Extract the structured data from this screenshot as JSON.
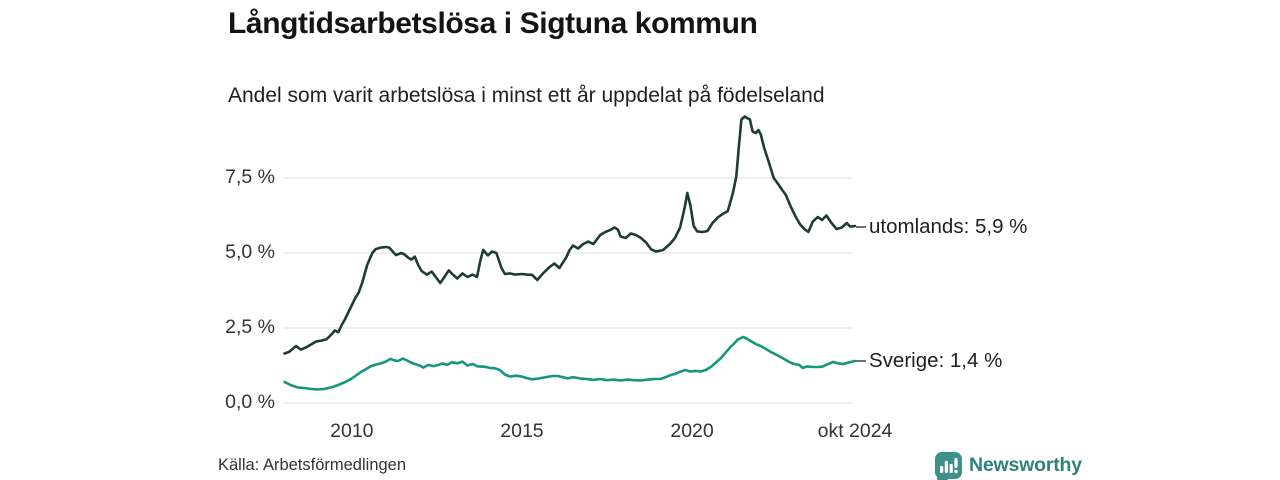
{
  "header": {
    "title": "Långtidsarbetslösa i Sigtuna kommun",
    "subtitle": "Andel som varit arbetslösa i minst ett år uppdelat på födelseland"
  },
  "chart_data": {
    "type": "line",
    "title": "Långtidsarbetslösa i Sigtuna kommun",
    "subtitle": "Andel som varit arbetslösa i minst ett år uppdelat på födelseland",
    "unit": "%",
    "grid": "horizontal-only",
    "legend_position": "end-of-line-labels-right",
    "xlim": [
      2008.02,
      2024.79
    ],
    "ylim": [
      0,
      9.8
    ],
    "yticks": [
      {
        "value": 7.5,
        "label": "7,5 %"
      },
      {
        "value": 5.0,
        "label": "5,0 %"
      },
      {
        "value": 2.5,
        "label": "2,5 %"
      },
      {
        "value": 0.0,
        "label": "0,0 %"
      }
    ],
    "xticks": [
      {
        "value": 2010,
        "label": "2010"
      },
      {
        "value": 2015,
        "label": "2015"
      },
      {
        "value": 2020,
        "label": "2020"
      },
      {
        "value": 2024.79,
        "label": "okt 2024"
      }
    ],
    "series": [
      {
        "name": "utomlands",
        "end_label": "utomlands: 5,9 %",
        "last_value_label": "5,9 %",
        "color": "#1e3b36",
        "points": [
          [
            2008.02,
            1.65
          ],
          [
            2008.15,
            1.7
          ],
          [
            2008.36,
            1.9
          ],
          [
            2008.5,
            1.78
          ],
          [
            2008.65,
            1.85
          ],
          [
            2008.8,
            1.95
          ],
          [
            2008.95,
            2.05
          ],
          [
            2009.1,
            2.08
          ],
          [
            2009.25,
            2.12
          ],
          [
            2009.4,
            2.28
          ],
          [
            2009.5,
            2.42
          ],
          [
            2009.6,
            2.36
          ],
          [
            2009.7,
            2.6
          ],
          [
            2009.8,
            2.8
          ],
          [
            2009.95,
            3.15
          ],
          [
            2010.1,
            3.5
          ],
          [
            2010.2,
            3.68
          ],
          [
            2010.3,
            4.0
          ],
          [
            2010.45,
            4.6
          ],
          [
            2010.6,
            5.0
          ],
          [
            2010.7,
            5.13
          ],
          [
            2010.85,
            5.18
          ],
          [
            2011.0,
            5.2
          ],
          [
            2011.1,
            5.18
          ],
          [
            2011.2,
            5.05
          ],
          [
            2011.3,
            4.93
          ],
          [
            2011.45,
            5.0
          ],
          [
            2011.55,
            4.95
          ],
          [
            2011.65,
            4.85
          ],
          [
            2011.75,
            4.78
          ],
          [
            2011.85,
            4.88
          ],
          [
            2011.95,
            4.6
          ],
          [
            2012.05,
            4.4
          ],
          [
            2012.2,
            4.28
          ],
          [
            2012.35,
            4.38
          ],
          [
            2012.5,
            4.15
          ],
          [
            2012.6,
            4.0
          ],
          [
            2012.72,
            4.2
          ],
          [
            2012.85,
            4.42
          ],
          [
            2012.95,
            4.3
          ],
          [
            2013.1,
            4.15
          ],
          [
            2013.25,
            4.32
          ],
          [
            2013.4,
            4.2
          ],
          [
            2013.55,
            4.28
          ],
          [
            2013.68,
            4.2
          ],
          [
            2013.78,
            4.75
          ],
          [
            2013.86,
            5.1
          ],
          [
            2014.0,
            4.92
          ],
          [
            2014.12,
            5.05
          ],
          [
            2014.25,
            5.0
          ],
          [
            2014.4,
            4.5
          ],
          [
            2014.5,
            4.3
          ],
          [
            2014.65,
            4.32
          ],
          [
            2014.8,
            4.28
          ],
          [
            2015.0,
            4.3
          ],
          [
            2015.15,
            4.28
          ],
          [
            2015.3,
            4.27
          ],
          [
            2015.45,
            4.1
          ],
          [
            2015.6,
            4.3
          ],
          [
            2015.8,
            4.52
          ],
          [
            2015.95,
            4.65
          ],
          [
            2016.1,
            4.5
          ],
          [
            2016.3,
            4.85
          ],
          [
            2016.4,
            5.1
          ],
          [
            2016.5,
            5.25
          ],
          [
            2016.65,
            5.15
          ],
          [
            2016.8,
            5.3
          ],
          [
            2016.95,
            5.38
          ],
          [
            2017.1,
            5.3
          ],
          [
            2017.3,
            5.6
          ],
          [
            2017.45,
            5.7
          ],
          [
            2017.6,
            5.77
          ],
          [
            2017.72,
            5.85
          ],
          [
            2017.82,
            5.78
          ],
          [
            2017.9,
            5.55
          ],
          [
            2018.05,
            5.5
          ],
          [
            2018.2,
            5.65
          ],
          [
            2018.35,
            5.6
          ],
          [
            2018.5,
            5.5
          ],
          [
            2018.65,
            5.35
          ],
          [
            2018.8,
            5.12
          ],
          [
            2018.95,
            5.05
          ],
          [
            2019.15,
            5.1
          ],
          [
            2019.35,
            5.3
          ],
          [
            2019.5,
            5.5
          ],
          [
            2019.65,
            5.85
          ],
          [
            2019.78,
            6.5
          ],
          [
            2019.86,
            7.0
          ],
          [
            2019.95,
            6.6
          ],
          [
            2020.05,
            5.9
          ],
          [
            2020.15,
            5.72
          ],
          [
            2020.3,
            5.7
          ],
          [
            2020.45,
            5.73
          ],
          [
            2020.6,
            6.0
          ],
          [
            2020.75,
            6.18
          ],
          [
            2020.9,
            6.3
          ],
          [
            2021.05,
            6.4
          ],
          [
            2021.2,
            7.0
          ],
          [
            2021.3,
            7.55
          ],
          [
            2021.38,
            8.6
          ],
          [
            2021.45,
            9.45
          ],
          [
            2021.55,
            9.55
          ],
          [
            2021.62,
            9.5
          ],
          [
            2021.7,
            9.45
          ],
          [
            2021.78,
            9.05
          ],
          [
            2021.88,
            9.0
          ],
          [
            2021.95,
            9.1
          ],
          [
            2022.02,
            8.95
          ],
          [
            2022.12,
            8.5
          ],
          [
            2022.25,
            8.05
          ],
          [
            2022.4,
            7.5
          ],
          [
            2022.5,
            7.35
          ],
          [
            2022.65,
            7.1
          ],
          [
            2022.75,
            6.95
          ],
          [
            2022.9,
            6.55
          ],
          [
            2023.05,
            6.2
          ],
          [
            2023.18,
            5.95
          ],
          [
            2023.3,
            5.8
          ],
          [
            2023.42,
            5.7
          ],
          [
            2023.55,
            6.05
          ],
          [
            2023.7,
            6.2
          ],
          [
            2023.82,
            6.1
          ],
          [
            2023.95,
            6.25
          ],
          [
            2024.1,
            6.0
          ],
          [
            2024.25,
            5.8
          ],
          [
            2024.4,
            5.85
          ],
          [
            2024.55,
            6.0
          ],
          [
            2024.65,
            5.88
          ],
          [
            2024.79,
            5.9
          ]
        ]
      },
      {
        "name": "Sverige",
        "end_label": "Sverige: 1,4 %",
        "last_value_label": "1,4 %",
        "color": "#149680",
        "points": [
          [
            2008.02,
            0.7
          ],
          [
            2008.2,
            0.6
          ],
          [
            2008.4,
            0.52
          ],
          [
            2008.6,
            0.5
          ],
          [
            2008.8,
            0.47
          ],
          [
            2009.0,
            0.45
          ],
          [
            2009.2,
            0.47
          ],
          [
            2009.4,
            0.52
          ],
          [
            2009.6,
            0.6
          ],
          [
            2009.8,
            0.7
          ],
          [
            2009.95,
            0.78
          ],
          [
            2010.1,
            0.9
          ],
          [
            2010.25,
            1.02
          ],
          [
            2010.4,
            1.12
          ],
          [
            2010.55,
            1.22
          ],
          [
            2010.7,
            1.28
          ],
          [
            2010.85,
            1.32
          ],
          [
            2011.0,
            1.38
          ],
          [
            2011.13,
            1.47
          ],
          [
            2011.25,
            1.42
          ],
          [
            2011.36,
            1.4
          ],
          [
            2011.5,
            1.48
          ],
          [
            2011.62,
            1.42
          ],
          [
            2011.7,
            1.37
          ],
          [
            2011.85,
            1.3
          ],
          [
            2012.0,
            1.25
          ],
          [
            2012.1,
            1.18
          ],
          [
            2012.25,
            1.27
          ],
          [
            2012.4,
            1.23
          ],
          [
            2012.55,
            1.27
          ],
          [
            2012.66,
            1.32
          ],
          [
            2012.8,
            1.27
          ],
          [
            2012.95,
            1.36
          ],
          [
            2013.1,
            1.32
          ],
          [
            2013.25,
            1.38
          ],
          [
            2013.4,
            1.25
          ],
          [
            2013.55,
            1.3
          ],
          [
            2013.7,
            1.22
          ],
          [
            2013.9,
            1.21
          ],
          [
            2014.05,
            1.17
          ],
          [
            2014.2,
            1.16
          ],
          [
            2014.35,
            1.1
          ],
          [
            2014.5,
            0.95
          ],
          [
            2014.65,
            0.88
          ],
          [
            2014.85,
            0.91
          ],
          [
            2015.0,
            0.88
          ],
          [
            2015.15,
            0.83
          ],
          [
            2015.3,
            0.79
          ],
          [
            2015.5,
            0.82
          ],
          [
            2015.7,
            0.86
          ],
          [
            2015.9,
            0.9
          ],
          [
            2016.05,
            0.9
          ],
          [
            2016.2,
            0.86
          ],
          [
            2016.35,
            0.82
          ],
          [
            2016.5,
            0.86
          ],
          [
            2016.7,
            0.82
          ],
          [
            2016.9,
            0.8
          ],
          [
            2017.1,
            0.77
          ],
          [
            2017.3,
            0.8
          ],
          [
            2017.5,
            0.76
          ],
          [
            2017.7,
            0.78
          ],
          [
            2017.9,
            0.75
          ],
          [
            2018.1,
            0.78
          ],
          [
            2018.3,
            0.76
          ],
          [
            2018.5,
            0.75
          ],
          [
            2018.7,
            0.78
          ],
          [
            2018.9,
            0.8
          ],
          [
            2019.07,
            0.8
          ],
          [
            2019.2,
            0.85
          ],
          [
            2019.35,
            0.92
          ],
          [
            2019.5,
            0.97
          ],
          [
            2019.6,
            1.02
          ],
          [
            2019.8,
            1.1
          ],
          [
            2019.95,
            1.05
          ],
          [
            2020.1,
            1.07
          ],
          [
            2020.25,
            1.05
          ],
          [
            2020.4,
            1.1
          ],
          [
            2020.55,
            1.2
          ],
          [
            2020.7,
            1.35
          ],
          [
            2020.85,
            1.5
          ],
          [
            2021.0,
            1.7
          ],
          [
            2021.12,
            1.85
          ],
          [
            2021.25,
            2.0
          ],
          [
            2021.35,
            2.12
          ],
          [
            2021.5,
            2.2
          ],
          [
            2021.6,
            2.15
          ],
          [
            2021.75,
            2.05
          ],
          [
            2021.9,
            1.95
          ],
          [
            2022.05,
            1.88
          ],
          [
            2022.2,
            1.78
          ],
          [
            2022.35,
            1.68
          ],
          [
            2022.55,
            1.57
          ],
          [
            2022.7,
            1.47
          ],
          [
            2022.85,
            1.37
          ],
          [
            2023.0,
            1.3
          ],
          [
            2023.15,
            1.27
          ],
          [
            2023.25,
            1.17
          ],
          [
            2023.4,
            1.22
          ],
          [
            2023.55,
            1.2
          ],
          [
            2023.7,
            1.2
          ],
          [
            2023.85,
            1.22
          ],
          [
            2024.0,
            1.3
          ],
          [
            2024.15,
            1.37
          ],
          [
            2024.3,
            1.32
          ],
          [
            2024.45,
            1.3
          ],
          [
            2024.6,
            1.35
          ],
          [
            2024.79,
            1.4
          ]
        ]
      }
    ]
  },
  "footer": {
    "source": "Källa: Arbetsförmedlingen",
    "brand": "Newsworthy",
    "brand_color": "#2f827c"
  }
}
